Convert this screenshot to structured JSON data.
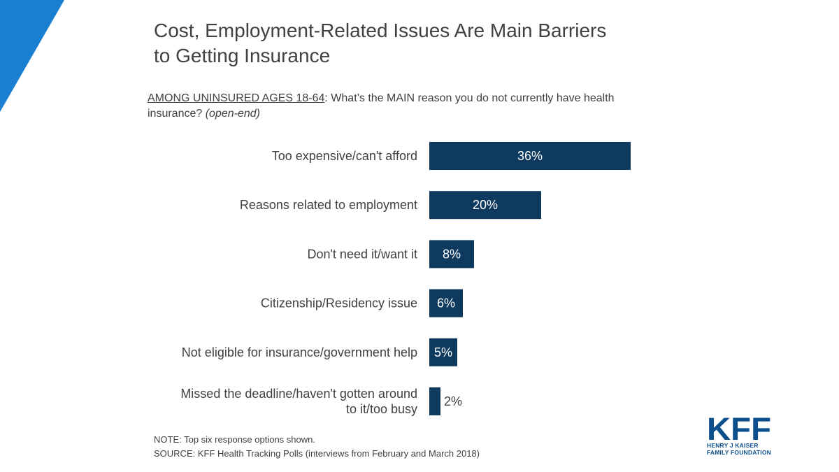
{
  "title": {
    "line1": "Cost, Employment-Related Issues Are Main Barriers",
    "line2": "to Getting Insurance"
  },
  "question": {
    "lead": "AMONG UNINSURED AGES 18-64",
    "text": ": What’s the MAIN reason you do not currently have health insurance? ",
    "qualifier": "(open-end)"
  },
  "chart_data": {
    "type": "bar",
    "orientation": "horizontal",
    "categories": [
      "Too expensive/can't afford",
      "Reasons related to employment",
      "Don't need it/want it",
      "Citizenship/Residency issue",
      "Not eligible for insurance/government help",
      "Missed the deadline/haven't gotten around to it/too busy"
    ],
    "category_lines": [
      [
        "Too expensive/can't afford"
      ],
      [
        "Reasons related to employment"
      ],
      [
        "Don't need it/want it"
      ],
      [
        "Citizenship/Residency issue"
      ],
      [
        "Not eligible for insurance/government help"
      ],
      [
        "Missed the deadline/haven't gotten around",
        "to it/too busy"
      ]
    ],
    "values": [
      36,
      20,
      8,
      6,
      5,
      2
    ],
    "value_labels": [
      "36%",
      "20%",
      "8%",
      "6%",
      "5%",
      "2%"
    ],
    "unit": "%",
    "bar_color": "#0e3a5f",
    "label_color_inside": "#ffffff",
    "label_color_outside": "#404040"
  },
  "footer": {
    "note": "NOTE: Top six response options shown.",
    "source": "SOURCE: KFF Health Tracking Polls (interviews from February and March 2018)"
  },
  "logo": {
    "text": "KFF",
    "sub1": "HENRY J KAISER",
    "sub2": "FAMILY FOUNDATION",
    "color": "#0b4f8c"
  },
  "accent_color": "#1a7fd1"
}
